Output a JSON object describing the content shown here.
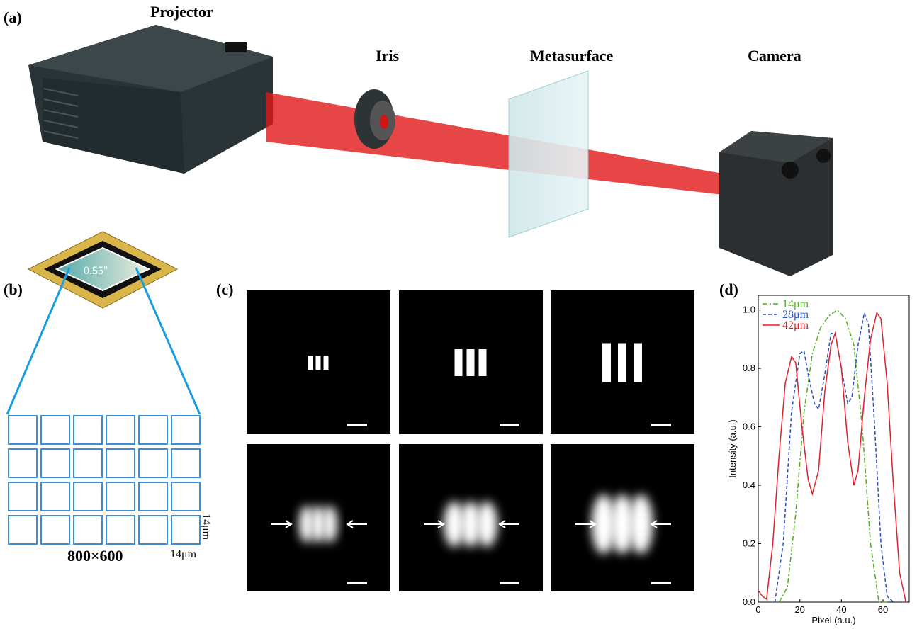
{
  "panel_a": {
    "label": "(a)",
    "projector": "Projector",
    "iris": "Iris",
    "metasurface": "Metasurface",
    "camera": "Camera"
  },
  "panel_b": {
    "label": "(b)",
    "chip_size": "0.55\"",
    "resolution": "800×600",
    "pixel_width": "14μm",
    "pixel_height": "14μm"
  },
  "panel_c": {
    "label": "(c)"
  },
  "panel_d": {
    "label": "(d)"
  },
  "chart_data": {
    "type": "line",
    "xlabel": "Pixel (a.u.)",
    "ylabel": "Intensity (a.u.)",
    "xlim": [
      0,
      72.6
    ],
    "ylim": [
      0,
      1.05
    ],
    "xticks": [
      0,
      20,
      40,
      60
    ],
    "yticks": [
      {
        "value": 0,
        "label": "0.0"
      },
      0.2,
      0.4,
      0.6,
      0.8,
      {
        "value": 1,
        "label": "1.0"
      }
    ],
    "legend": "upper left",
    "series": [
      {
        "name": "14μm",
        "color": "#4caf1a",
        "dash": "7,3,2,3",
        "x": [
          10,
          14,
          18,
          22,
          26,
          30,
          34,
          38,
          42,
          46,
          50,
          54,
          58,
          62
        ],
        "values": [
          0,
          0.05,
          0.3,
          0.65,
          0.85,
          0.94,
          0.98,
          1.0,
          0.97,
          0.88,
          0.6,
          0.2,
          0,
          0
        ]
      },
      {
        "name": "28μm",
        "color": "#2a4fc8",
        "dash": "5,3",
        "x": [
          8,
          12,
          16,
          20,
          22,
          24,
          27,
          29,
          32,
          35,
          37,
          40,
          43,
          45,
          48,
          51,
          53,
          56,
          59,
          62,
          65
        ],
        "values": [
          0,
          0.2,
          0.65,
          0.85,
          0.86,
          0.78,
          0.68,
          0.66,
          0.78,
          0.92,
          0.92,
          0.8,
          0.68,
          0.7,
          0.88,
          0.99,
          0.95,
          0.6,
          0.2,
          0.02,
          0
        ]
      },
      {
        "name": "42μm",
        "color": "#e0202a",
        "dash": "",
        "x": [
          0,
          2,
          4,
          7,
          10,
          13,
          16,
          18,
          21,
          24,
          26,
          29,
          32,
          35,
          37,
          40,
          43,
          46,
          48,
          51,
          54,
          57,
          59,
          62,
          65,
          68,
          71
        ],
        "values": [
          0.04,
          0.02,
          0.01,
          0.2,
          0.5,
          0.75,
          0.84,
          0.82,
          0.6,
          0.42,
          0.37,
          0.45,
          0.72,
          0.88,
          0.92,
          0.8,
          0.55,
          0.4,
          0.45,
          0.7,
          0.9,
          0.99,
          0.97,
          0.75,
          0.4,
          0.1,
          0
        ]
      }
    ]
  }
}
